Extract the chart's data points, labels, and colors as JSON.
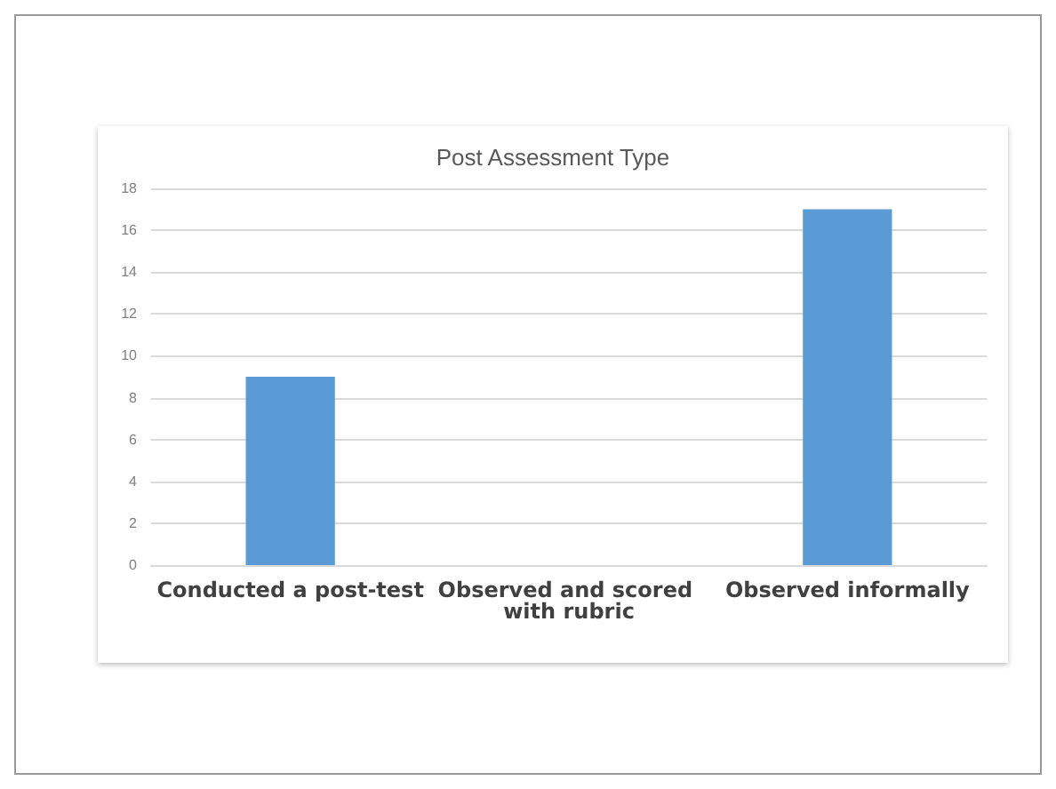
{
  "chart_data": {
    "type": "bar",
    "title": "Post Assessment Type",
    "categories": [
      "Conducted a post-test",
      "Observed and scored with rubric",
      "Observed informally"
    ],
    "values": [
      9,
      0,
      17
    ],
    "color": "#5b9bd5",
    "ylim": [
      0,
      18
    ],
    "yticks": [
      0,
      2,
      4,
      6,
      8,
      10,
      12,
      14,
      16,
      18
    ],
    "grid": "y"
  }
}
